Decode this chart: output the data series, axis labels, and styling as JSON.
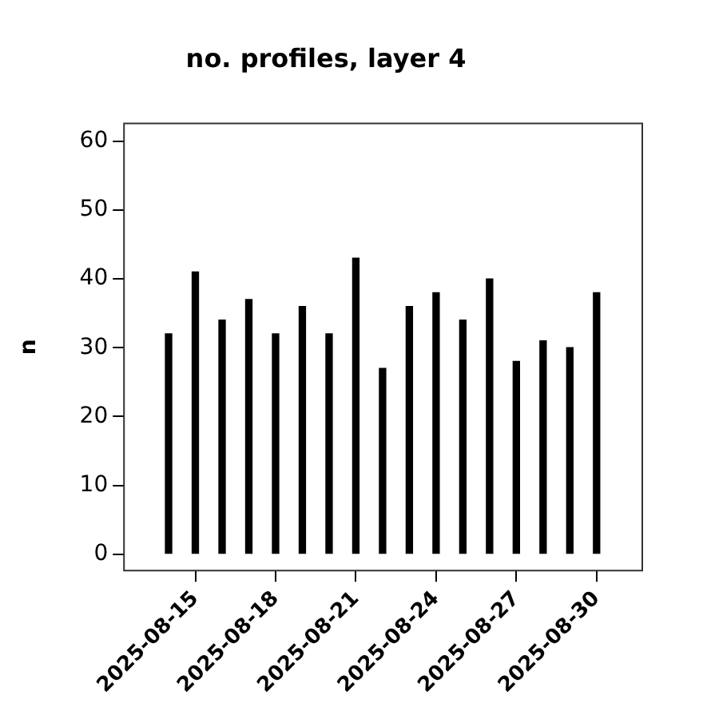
{
  "chart_data": {
    "type": "bar",
    "title": "no. profiles, layer 4",
    "ylabel": "n",
    "x": [
      "2025-08-14",
      "2025-08-15",
      "2025-08-16",
      "2025-08-17",
      "2025-08-18",
      "2025-08-19",
      "2025-08-20",
      "2025-08-21",
      "2025-08-22",
      "2025-08-23",
      "2025-08-24",
      "2025-08-25",
      "2025-08-26",
      "2025-08-27",
      "2025-08-28",
      "2025-08-29",
      "2025-08-30"
    ],
    "values": [
      32,
      41,
      34,
      37,
      32,
      36,
      32,
      43,
      27,
      36,
      38,
      34,
      40,
      28,
      31,
      30,
      38
    ],
    "color": "#000000",
    "xlim": [
      "2025-08-12T08:00",
      "2025-08-31T17:00"
    ],
    "xticks": [
      "2025-08-15",
      "2025-08-18",
      "2025-08-21",
      "2025-08-24",
      "2025-08-27",
      "2025-08-30"
    ],
    "ylim": [
      -2.4,
      62.6
    ],
    "yticks": [
      0,
      10,
      20,
      30,
      40,
      50,
      60
    ],
    "grid": false,
    "legend": false
  }
}
